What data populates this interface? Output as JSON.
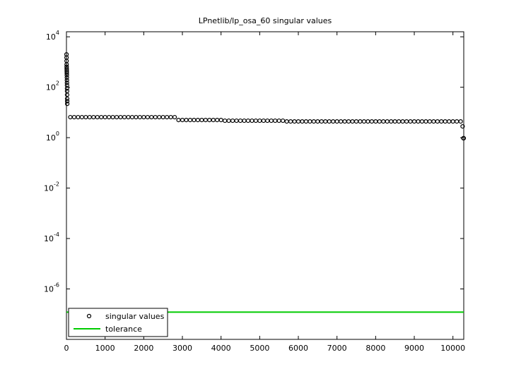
{
  "chart_data": {
    "type": "scatter",
    "title": "LPnetlib/lp_osa_60 singular values",
    "log_y": true,
    "xlim": [
      0,
      10280
    ],
    "xticks": [
      0,
      1000,
      2000,
      3000,
      4000,
      5000,
      6000,
      7000,
      8000,
      9000,
      10000
    ],
    "ylim": [
      1e-08,
      15849
    ],
    "yticks": [
      {
        "value": 1e-06,
        "label": "10^-6"
      },
      {
        "value": 0.0001,
        "label": "10^-4"
      },
      {
        "value": 0.01,
        "label": "10^-2"
      },
      {
        "value": 1,
        "label": "10^0"
      },
      {
        "value": 100,
        "label": "10^2"
      },
      {
        "value": 10000,
        "label": "10^4"
      }
    ],
    "legend": "lower left",
    "series": [
      {
        "name": "singular values",
        "color": "#000000",
        "marker": "circle",
        "x": [
          1,
          2,
          3,
          4,
          5,
          6,
          7,
          8,
          9,
          10,
          11,
          12,
          13,
          14,
          15,
          16,
          17,
          18,
          19,
          20,
          100,
          200,
          300,
          400,
          500,
          600,
          700,
          800,
          900,
          1000,
          1100,
          1200,
          1300,
          1400,
          1500,
          1600,
          1700,
          1800,
          1900,
          2000,
          2100,
          2200,
          2300,
          2400,
          2500,
          2600,
          2700,
          2800,
          2900,
          3000,
          3100,
          3200,
          3300,
          3400,
          3500,
          3600,
          3700,
          3800,
          3900,
          4000,
          4100,
          4200,
          4300,
          4400,
          4500,
          4600,
          4700,
          4800,
          4900,
          5000,
          5100,
          5200,
          5300,
          5400,
          5500,
          5600,
          5700,
          5800,
          5900,
          6000,
          6100,
          6200,
          6300,
          6400,
          6500,
          6600,
          6700,
          6800,
          6900,
          7000,
          7100,
          7200,
          7300,
          7400,
          7500,
          7600,
          7700,
          7800,
          7900,
          8000,
          8100,
          8200,
          8300,
          8400,
          8500,
          8600,
          8700,
          8800,
          8900,
          9000,
          9100,
          9200,
          9300,
          9400,
          9500,
          9600,
          9700,
          9800,
          9900,
          10000,
          10100,
          10200,
          10250,
          10270,
          10280
        ],
        "values": [
          2000,
          1500,
          1100,
          800,
          650,
          550,
          480,
          420,
          360,
          300,
          240,
          190,
          150,
          120,
          90,
          70,
          50,
          35,
          28,
          22,
          6.5,
          6.5,
          6.5,
          6.5,
          6.5,
          6.5,
          6.5,
          6.5,
          6.5,
          6.5,
          6.5,
          6.5,
          6.5,
          6.5,
          6.5,
          6.5,
          6.5,
          6.5,
          6.5,
          6.5,
          6.5,
          6.5,
          6.5,
          6.5,
          6.5,
          6.5,
          6.5,
          6.5,
          5,
          5,
          5,
          5,
          5,
          5,
          5,
          5,
          5,
          5,
          5,
          5,
          4.7,
          4.7,
          4.7,
          4.7,
          4.7,
          4.7,
          4.7,
          4.7,
          4.7,
          4.7,
          4.7,
          4.7,
          4.7,
          4.7,
          4.7,
          4.7,
          4.4,
          4.4,
          4.4,
          4.4,
          4.4,
          4.4,
          4.4,
          4.4,
          4.4,
          4.4,
          4.4,
          4.4,
          4.4,
          4.4,
          4.4,
          4.4,
          4.4,
          4.4,
          4.4,
          4.4,
          4.4,
          4.4,
          4.4,
          4.4,
          4.4,
          4.4,
          4.4,
          4.4,
          4.4,
          4.4,
          4.4,
          4.4,
          4.4,
          4.4,
          4.4,
          4.4,
          4.4,
          4.4,
          4.4,
          4.4,
          4.4,
          4.4,
          4.4,
          4.4,
          4.4,
          4.4,
          2.8,
          0.95,
          0.95
        ]
      },
      {
        "name": "tolerance",
        "color": "#00cc00",
        "marker": "line",
        "x": [
          1,
          10280
        ],
        "values": [
          1.2e-07,
          1.2e-07
        ]
      }
    ]
  }
}
